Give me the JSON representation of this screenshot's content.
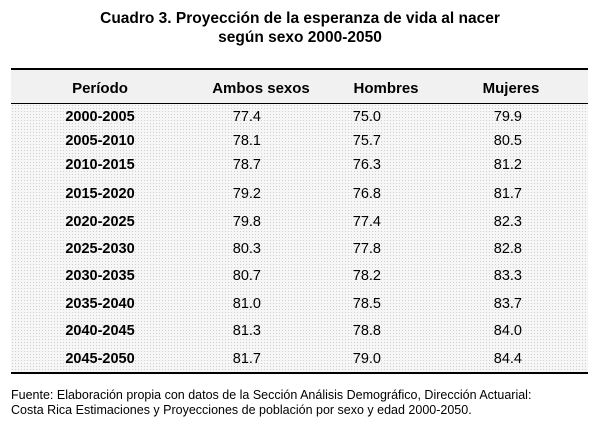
{
  "title": {
    "line1": "Cuadro 3. Proyección de la esperanza de vida al nacer",
    "line2": "según sexo 2000-2050"
  },
  "table": {
    "headers": [
      "Período",
      "Ambos sexos",
      "Hombres",
      "Mujeres"
    ],
    "rows": [
      {
        "periodo": "2000-2005",
        "ambos": "77.4",
        "hombres": "75.0",
        "mujeres": "79.9"
      },
      {
        "periodo": "2005-2010",
        "ambos": "78.1",
        "hombres": "75.7",
        "mujeres": "80.5"
      },
      {
        "periodo": "2010-2015",
        "ambos": "78.7",
        "hombres": "76.3",
        "mujeres": "81.2"
      },
      {
        "periodo": "2015-2020",
        "ambos": "79.2",
        "hombres": "76.8",
        "mujeres": "81.7"
      },
      {
        "periodo": "2020-2025",
        "ambos": "79.8",
        "hombres": "77.4",
        "mujeres": "82.3"
      },
      {
        "periodo": "2025-2030",
        "ambos": "80.3",
        "hombres": "77.8",
        "mujeres": "82.8"
      },
      {
        "periodo": "2030-2035",
        "ambos": "80.7",
        "hombres": "78.2",
        "mujeres": "83.3"
      },
      {
        "periodo": "2035-2040",
        "ambos": "81.0",
        "hombres": "78.5",
        "mujeres": "83.7"
      },
      {
        "periodo": "2040-2045",
        "ambos": "81.3",
        "hombres": "78.8",
        "mujeres": "84.0"
      },
      {
        "periodo": "2045-2050",
        "ambos": "81.7",
        "hombres": "79.0",
        "mujeres": "84.4"
      }
    ]
  },
  "footer": {
    "line1": "Fuente: Elaboración propia con datos de la Sección Análisis Demográfico, Dirección Actuarial:",
    "line2": "Costa Rica Estimaciones y Proyecciones de población por sexo y edad 2000-2050."
  }
}
